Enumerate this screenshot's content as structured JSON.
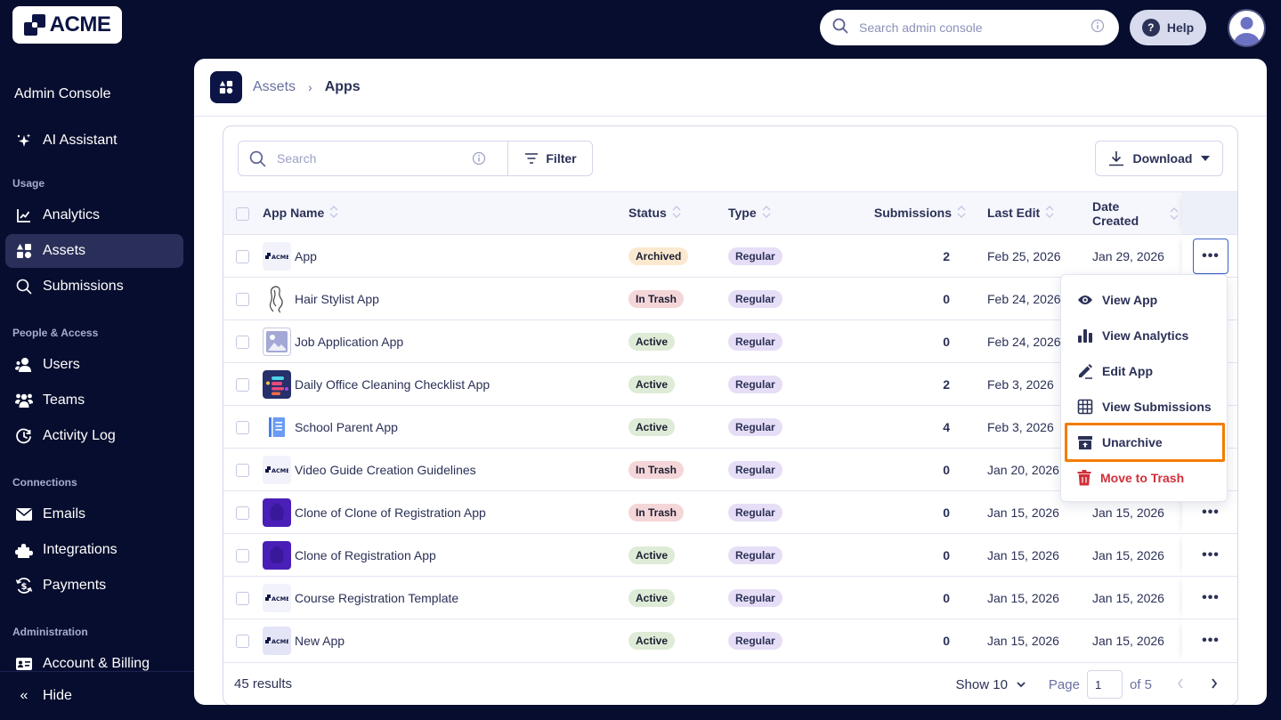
{
  "brand": {
    "logo_text": "ACME"
  },
  "topbar": {
    "search_placeholder": "Search admin console",
    "help_label": "Help"
  },
  "sidebar": {
    "title": "Admin Console",
    "ai_assistant": "AI Assistant",
    "sections": {
      "usage": "Usage",
      "people": "People & Access",
      "connections": "Connections",
      "administration": "Administration"
    },
    "items": {
      "analytics": "Analytics",
      "assets": "Assets",
      "submissions": "Submissions",
      "users": "Users",
      "teams": "Teams",
      "activity_log": "Activity Log",
      "emails": "Emails",
      "integrations": "Integrations",
      "payments": "Payments",
      "account_billing": "Account & Billing"
    },
    "hide_label": "Hide"
  },
  "breadcrumb": {
    "parent": "Assets",
    "separator": "›",
    "current": "Apps"
  },
  "toolbar": {
    "search_placeholder": "Search",
    "filter_label": "Filter",
    "download_label": "Download"
  },
  "table": {
    "columns": {
      "name": "App Name",
      "status": "Status",
      "type": "Type",
      "submissions": "Submissions",
      "last_edit": "Last Edit",
      "date_created_1": "Date",
      "date_created_2": "Created"
    },
    "rows": [
      {
        "name": "App",
        "thumb": "acme",
        "status": "Archived",
        "type": "Regular",
        "submissions": "2",
        "last_edit": "Feb 25, 2026",
        "created": "Jan 29, 2026"
      },
      {
        "name": "Hair Stylist App",
        "thumb": "hair",
        "status": "In Trash",
        "type": "Regular",
        "submissions": "0",
        "last_edit": "Feb 24, 2026",
        "created": ""
      },
      {
        "name": "Job Application App",
        "thumb": "image",
        "status": "Active",
        "type": "Regular",
        "submissions": "0",
        "last_edit": "Feb 24, 2026",
        "created": ""
      },
      {
        "name": "Daily Office Cleaning Checklist App",
        "thumb": "checklist",
        "status": "Active",
        "type": "Regular",
        "submissions": "2",
        "last_edit": "Feb 3, 2026",
        "created": ""
      },
      {
        "name": "School Parent App",
        "thumb": "book",
        "status": "Active",
        "type": "Regular",
        "submissions": "4",
        "last_edit": "Feb 3, 2026",
        "created": ""
      },
      {
        "name": "Video Guide Creation Guidelines",
        "thumb": "acme",
        "status": "In Trash",
        "type": "Regular",
        "submissions": "0",
        "last_edit": "Jan 20, 2026",
        "created": ""
      },
      {
        "name": "Clone of Clone of Registration App",
        "thumb": "purple",
        "status": "In Trash",
        "type": "Regular",
        "submissions": "0",
        "last_edit": "Jan 15, 2026",
        "created": "Jan 15, 2026"
      },
      {
        "name": "Clone of Registration App",
        "thumb": "purple",
        "status": "Active",
        "type": "Regular",
        "submissions": "0",
        "last_edit": "Jan 15, 2026",
        "created": "Jan 15, 2026"
      },
      {
        "name": "Course Registration Template",
        "thumb": "acme",
        "status": "Active",
        "type": "Regular",
        "submissions": "0",
        "last_edit": "Jan 15, 2026",
        "created": "Jan 15, 2026"
      },
      {
        "name": "New App",
        "thumb": "acme-dark",
        "status": "Active",
        "type": "Regular",
        "submissions": "0",
        "last_edit": "Jan 15, 2026",
        "created": "Jan 15, 2026"
      }
    ],
    "actions_glyph": "•••"
  },
  "status_colors": {
    "Archived": "#fbe9cf",
    "In Trash": "#f5d6d8",
    "Active": "#deebd6",
    "Regular": "#e6def6"
  },
  "context_menu": {
    "items": [
      {
        "label": "View App",
        "icon": "eye-icon"
      },
      {
        "label": "View Analytics",
        "icon": "bar-chart-icon"
      },
      {
        "label": "Edit App",
        "icon": "pencil-icon"
      },
      {
        "label": "View Submissions",
        "icon": "grid-icon"
      },
      {
        "label": "Unarchive",
        "icon": "unarchive-icon",
        "highlighted": true
      },
      {
        "label": "Move to Trash",
        "icon": "trash-icon",
        "danger": true
      }
    ]
  },
  "footer": {
    "results": "45 results",
    "show_label": "Show 10",
    "page_label": "Page",
    "page_value": "1",
    "of_label": "of 5"
  },
  "colors": {
    "background": "#070d2e",
    "highlight_outline": "#f57c00",
    "danger": "#d0303a"
  }
}
